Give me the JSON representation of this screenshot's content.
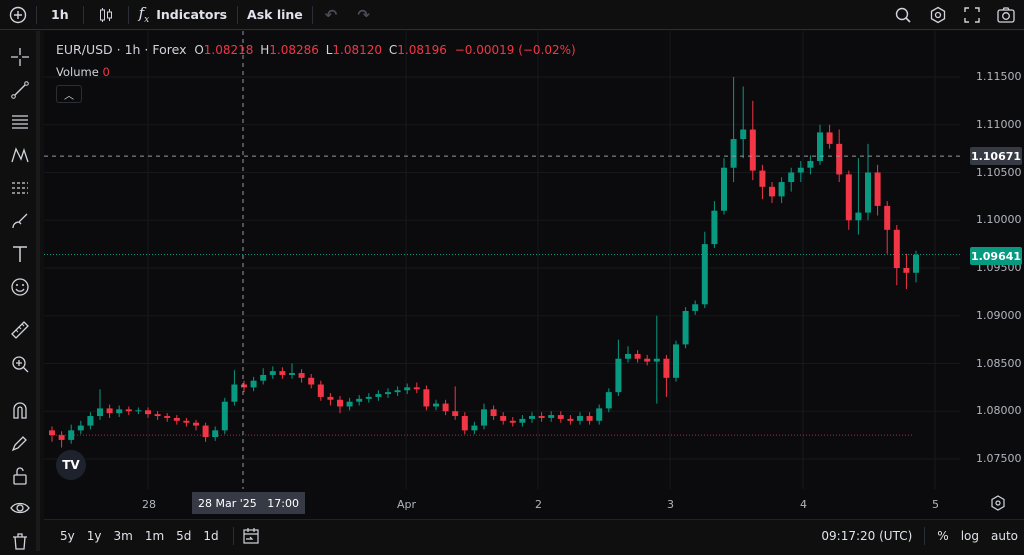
{
  "toolbar": {
    "interval": "1h",
    "indicators": "Indicators",
    "ask_line": "Ask line"
  },
  "legend": {
    "symbol": "EUR/USD · 1h · Forex",
    "o_label": "O",
    "o": "1.08218",
    "h_label": "H",
    "h": "1.08286",
    "l_label": "L",
    "l": "1.08120",
    "c_label": "C",
    "c": "1.08196",
    "change": "−0.00019 (−0.02%)",
    "volume_label": "Volume",
    "volume": "0"
  },
  "price_axis": {
    "ticks": [
      "1.11500",
      "1.11000",
      "1.10500",
      "1.10000",
      "1.09500",
      "1.09000",
      "1.08500",
      "1.08000",
      "1.07500"
    ],
    "crosshair_label": "1.10671",
    "last_price_label": "1.09641"
  },
  "time_axis": {
    "ticks": [
      "28",
      "Apr",
      "2",
      "3",
      "4",
      "5"
    ],
    "crosshair_label": "28 Mar '25   17:00"
  },
  "bottom": {
    "ranges": [
      "5y",
      "1y",
      "3m",
      "1m",
      "5d",
      "1d"
    ],
    "clock": "09:17:20 (UTC)",
    "percent": "%",
    "log": "log",
    "auto": "auto"
  },
  "colors": {
    "up": "#089981",
    "down": "#f23645"
  },
  "chart_data": {
    "type": "candlestick",
    "symbol": "EUR/USD",
    "interval": "1h",
    "ylim": [
      1.0725,
      1.1175
    ],
    "x_ticks": [
      "28",
      "Apr",
      "2",
      "3",
      "4",
      "5"
    ],
    "crosshair_price": 1.10671,
    "last_price": 1.09641,
    "ref_line": 1.0775,
    "candles": [
      [
        1.078,
        1.0784,
        1.0768,
        1.0775
      ],
      [
        1.0775,
        1.0779,
        1.0762,
        1.077
      ],
      [
        1.077,
        1.0786,
        1.0766,
        1.078
      ],
      [
        1.078,
        1.079,
        1.0776,
        1.0785
      ],
      [
        1.0785,
        1.0799,
        1.0781,
        1.0795
      ],
      [
        1.0795,
        1.0823,
        1.0791,
        1.0803
      ],
      [
        1.0803,
        1.0807,
        1.0793,
        1.0798
      ],
      [
        1.0798,
        1.0806,
        1.0794,
        1.0802
      ],
      [
        1.0802,
        1.0805,
        1.0796,
        1.08
      ],
      [
        1.08,
        1.0804,
        1.0797,
        1.0801
      ],
      [
        1.0801,
        1.0804,
        1.0793,
        1.0797
      ],
      [
        1.0797,
        1.08,
        1.0791,
        1.0795
      ],
      [
        1.0795,
        1.0798,
        1.0789,
        1.0793
      ],
      [
        1.0793,
        1.0796,
        1.0786,
        1.079
      ],
      [
        1.079,
        1.0793,
        1.0784,
        1.0788
      ],
      [
        1.0788,
        1.0791,
        1.078,
        1.0785
      ],
      [
        1.0785,
        1.0788,
        1.0768,
        1.0773
      ],
      [
        1.0773,
        1.0784,
        1.0769,
        1.078
      ],
      [
        1.078,
        1.0814,
        1.0776,
        1.081
      ],
      [
        1.081,
        1.0843,
        1.0806,
        1.0828
      ],
      [
        1.0828,
        1.0832,
        1.082,
        1.0825
      ],
      [
        1.0825,
        1.0836,
        1.0821,
        1.0832
      ],
      [
        1.0832,
        1.0845,
        1.0828,
        1.0838
      ],
      [
        1.0838,
        1.0847,
        1.0834,
        1.0842
      ],
      [
        1.0842,
        1.0846,
        1.0834,
        1.0838
      ],
      [
        1.0838,
        1.085,
        1.0834,
        1.084
      ],
      [
        1.084,
        1.0844,
        1.083,
        1.0835
      ],
      [
        1.0835,
        1.0839,
        1.0824,
        1.0828
      ],
      [
        1.0828,
        1.0832,
        1.0811,
        1.0815
      ],
      [
        1.0815,
        1.0819,
        1.0806,
        1.0812
      ],
      [
        1.0812,
        1.0816,
        1.0798,
        1.0805
      ],
      [
        1.0805,
        1.0814,
        1.0801,
        1.081
      ],
      [
        1.081,
        1.0817,
        1.0806,
        1.0813
      ],
      [
        1.0813,
        1.0819,
        1.0809,
        1.0815
      ],
      [
        1.0815,
        1.0822,
        1.0811,
        1.0818
      ],
      [
        1.0818,
        1.0824,
        1.0814,
        1.082
      ],
      [
        1.082,
        1.0826,
        1.0816,
        1.0822
      ],
      [
        1.0822,
        1.0829,
        1.0818,
        1.0825
      ],
      [
        1.0825,
        1.083,
        1.0819,
        1.0823
      ],
      [
        1.0823,
        1.0827,
        1.0801,
        1.0805
      ],
      [
        1.0805,
        1.0812,
        1.0801,
        1.0808
      ],
      [
        1.0808,
        1.0812,
        1.0796,
        1.08
      ],
      [
        1.08,
        1.0826,
        1.0791,
        1.0795
      ],
      [
        1.0795,
        1.0799,
        1.0776,
        1.078
      ],
      [
        1.078,
        1.0789,
        1.0776,
        1.0785
      ],
      [
        1.0785,
        1.0808,
        1.0781,
        1.0802
      ],
      [
        1.0802,
        1.0806,
        1.0791,
        1.0795
      ],
      [
        1.0795,
        1.0799,
        1.0786,
        1.079
      ],
      [
        1.079,
        1.0794,
        1.0784,
        1.0788
      ],
      [
        1.0788,
        1.0796,
        1.0784,
        1.0792
      ],
      [
        1.0792,
        1.0799,
        1.0788,
        1.0795
      ],
      [
        1.0795,
        1.0799,
        1.0789,
        1.0793
      ],
      [
        1.0793,
        1.08,
        1.0789,
        1.0796
      ],
      [
        1.0796,
        1.08,
        1.0788,
        1.0792
      ],
      [
        1.0792,
        1.0796,
        1.0786,
        1.079
      ],
      [
        1.079,
        1.0799,
        1.0786,
        1.0795
      ],
      [
        1.0795,
        1.0799,
        1.0786,
        1.079
      ],
      [
        1.079,
        1.0807,
        1.0786,
        1.0803
      ],
      [
        1.0803,
        1.0824,
        1.0799,
        1.082
      ],
      [
        1.082,
        1.0875,
        1.0816,
        1.0855
      ],
      [
        1.0855,
        1.0868,
        1.0851,
        1.086
      ],
      [
        1.086,
        1.0864,
        1.0851,
        1.0855
      ],
      [
        1.0855,
        1.0859,
        1.0848,
        1.0852
      ],
      [
        1.0852,
        1.09,
        1.0808,
        1.0855
      ],
      [
        1.0855,
        1.0859,
        1.0815,
        1.0835
      ],
      [
        1.0835,
        1.0874,
        1.0831,
        1.087
      ],
      [
        1.087,
        1.0909,
        1.0866,
        1.0905
      ],
      [
        1.0905,
        1.0916,
        1.0901,
        1.0912
      ],
      [
        1.0912,
        1.0988,
        1.0908,
        1.0975
      ],
      [
        1.0975,
        1.102,
        1.0971,
        1.101
      ],
      [
        1.101,
        1.1065,
        1.1006,
        1.1055
      ],
      [
        1.1055,
        1.115,
        1.104,
        1.1085
      ],
      [
        1.1085,
        1.114,
        1.1065,
        1.1095
      ],
      [
        1.1095,
        1.1125,
        1.1042,
        1.1052
      ],
      [
        1.1052,
        1.1058,
        1.1022,
        1.1035
      ],
      [
        1.1035,
        1.104,
        1.1018,
        1.1025
      ],
      [
        1.1025,
        1.1045,
        1.1018,
        1.104
      ],
      [
        1.104,
        1.1055,
        1.103,
        1.105
      ],
      [
        1.105,
        1.1062,
        1.104,
        1.1055
      ],
      [
        1.1055,
        1.1068,
        1.1048,
        1.1062
      ],
      [
        1.1062,
        1.11,
        1.1058,
        1.1092
      ],
      [
        1.1092,
        1.11,
        1.1075,
        1.108
      ],
      [
        1.108,
        1.1095,
        1.104,
        1.1048
      ],
      [
        1.1048,
        1.1052,
        1.099,
        1.1
      ],
      [
        1.1,
        1.1065,
        1.0985,
        1.1008
      ],
      [
        1.1008,
        1.108,
        1.1,
        1.105
      ],
      [
        1.105,
        1.1058,
        1.1005,
        1.1015
      ],
      [
        1.1015,
        1.102,
        1.0965,
        1.099
      ],
      [
        1.099,
        1.0995,
        1.0932,
        1.095
      ],
      [
        1.095,
        1.0965,
        1.0928,
        1.0945
      ],
      [
        1.0945,
        1.0968,
        1.0935,
        1.0964
      ]
    ]
  }
}
